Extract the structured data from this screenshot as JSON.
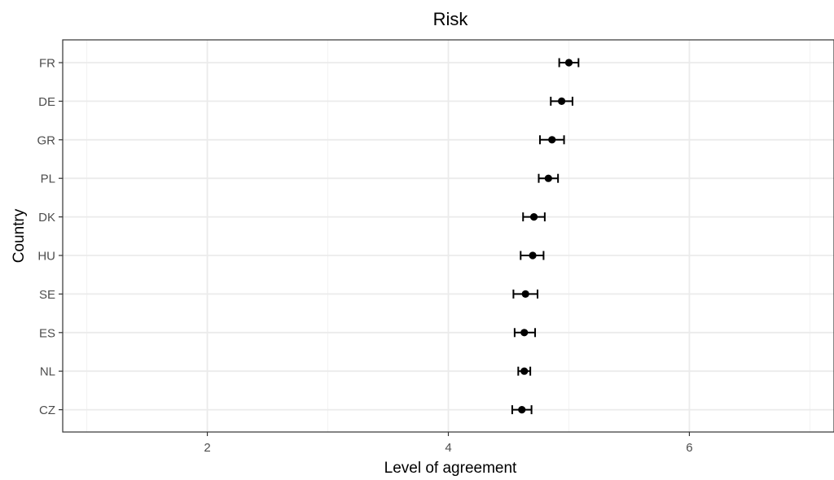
{
  "chart_data": {
    "type": "errorbar",
    "title": "Risk",
    "xlabel": "Level of agreement",
    "ylabel": "Country",
    "xlim": [
      0.8,
      7.2
    ],
    "xticks": [
      2,
      4,
      6
    ],
    "xtick_labels": [
      "2",
      "4",
      "6"
    ],
    "grid": true,
    "categories": [
      "FR",
      "DE",
      "GR",
      "PL",
      "DK",
      "HU",
      "SE",
      "ES",
      "NL",
      "CZ"
    ],
    "values": [
      5.0,
      4.94,
      4.86,
      4.83,
      4.71,
      4.7,
      4.64,
      4.63,
      4.63,
      4.61
    ],
    "lower": [
      4.92,
      4.85,
      4.76,
      4.75,
      4.62,
      4.6,
      4.54,
      4.55,
      4.58,
      4.53
    ],
    "upper": [
      5.08,
      5.03,
      4.96,
      4.91,
      4.8,
      4.79,
      4.74,
      4.72,
      4.68,
      4.69
    ]
  }
}
